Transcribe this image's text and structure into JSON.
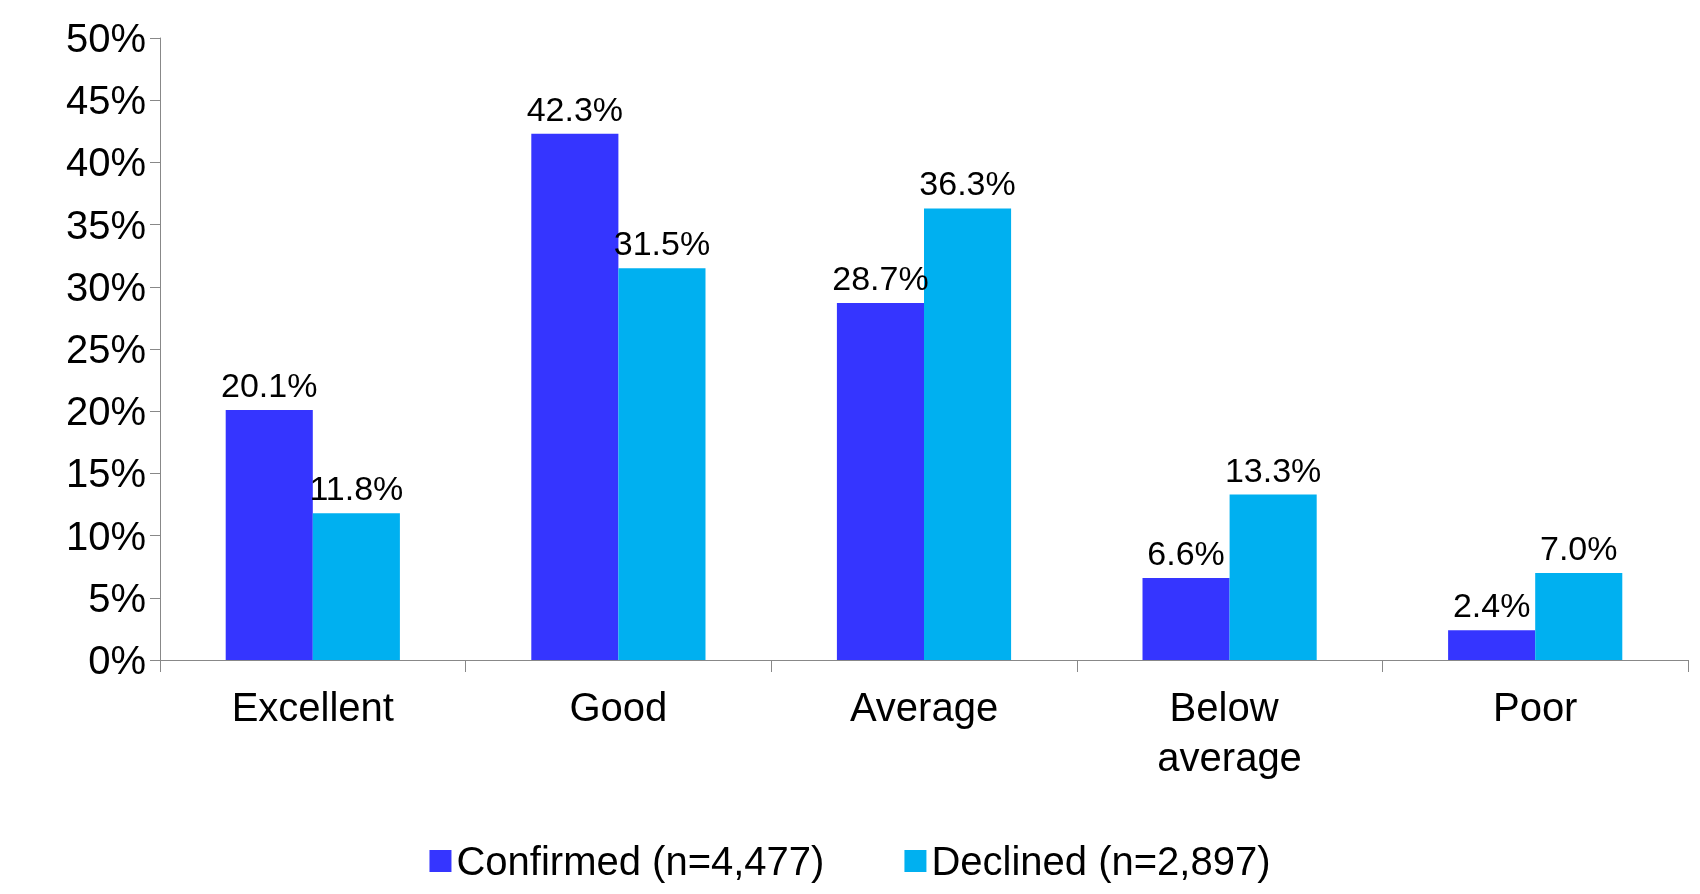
{
  "chart_data": {
    "type": "bar",
    "categories": [
      "Excellent",
      "Good",
      "Average",
      "Below average",
      "Poor"
    ],
    "series": [
      {
        "name": "Confirmed (n=4,477)",
        "color": "#3535ff",
        "values": [
          20.1,
          42.3,
          28.7,
          6.6,
          2.4
        ],
        "value_labels": [
          "20.1%",
          "42.3%",
          "28.7%",
          "6.6%",
          "2.4%"
        ]
      },
      {
        "name": "Declined (n=2,897)",
        "color": "#00b0f0",
        "values": [
          11.8,
          31.5,
          36.3,
          13.3,
          7.0
        ],
        "value_labels": [
          "11.8%",
          "31.5%",
          "36.3%",
          "13.3%",
          "7.0%"
        ]
      }
    ],
    "ylim": [
      0,
      50
    ],
    "yticks": [
      {
        "value": 0,
        "label": "0%"
      },
      {
        "value": 5,
        "label": "5%"
      },
      {
        "value": 10,
        "label": "10%"
      },
      {
        "value": 15,
        "label": "15%"
      },
      {
        "value": 20,
        "label": "20%"
      },
      {
        "value": 25,
        "label": "25%"
      },
      {
        "value": 30,
        "label": "30%"
      },
      {
        "value": 35,
        "label": "35%"
      },
      {
        "value": 40,
        "label": "40%"
      },
      {
        "value": 45,
        "label": "45%"
      },
      {
        "value": 50,
        "label": "50%"
      }
    ],
    "grid": false,
    "legend": "bottom"
  }
}
